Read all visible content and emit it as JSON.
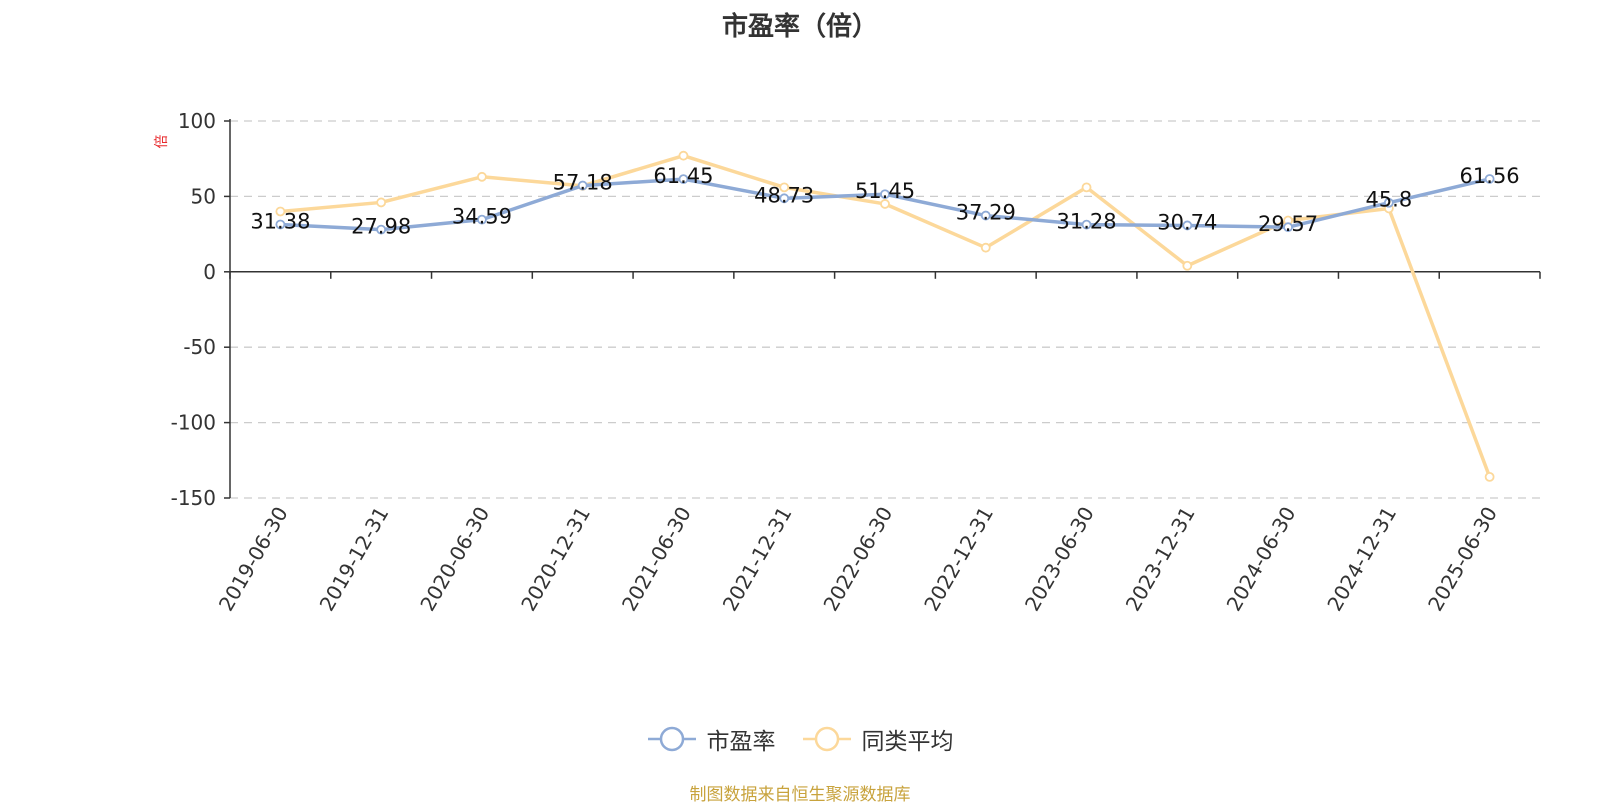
{
  "title": "市盈率（倍）",
  "source": "制图数据来自恒生聚源数据库",
  "chart_data": {
    "type": "line",
    "title": "市盈率（倍）",
    "ylabel": "倍",
    "xlabel": "",
    "ylim": [
      -150,
      100
    ],
    "yticks": [
      100,
      50,
      0,
      -50,
      -100,
      -150
    ],
    "grid": true,
    "legend_position": "bottom",
    "categories": [
      "2019-06-30",
      "2019-12-31",
      "2020-06-30",
      "2020-12-31",
      "2021-06-30",
      "2021-12-31",
      "2022-06-30",
      "2022-12-31",
      "2023-06-30",
      "2023-12-31",
      "2024-06-30",
      "2024-12-31",
      "2025-06-30"
    ],
    "series": [
      {
        "name": "市盈率",
        "color": "#8eaad6",
        "labeled": true,
        "values": [
          31.38,
          27.98,
          34.59,
          57.18,
          61.45,
          48.73,
          51.45,
          37.29,
          31.28,
          30.74,
          29.57,
          45.8,
          61.56
        ]
      },
      {
        "name": "同类平均",
        "color": "#fcd89a",
        "labeled": false,
        "values": [
          40,
          46,
          63,
          57,
          77,
          56,
          45,
          16,
          56,
          4,
          34,
          42,
          -136
        ]
      }
    ]
  }
}
